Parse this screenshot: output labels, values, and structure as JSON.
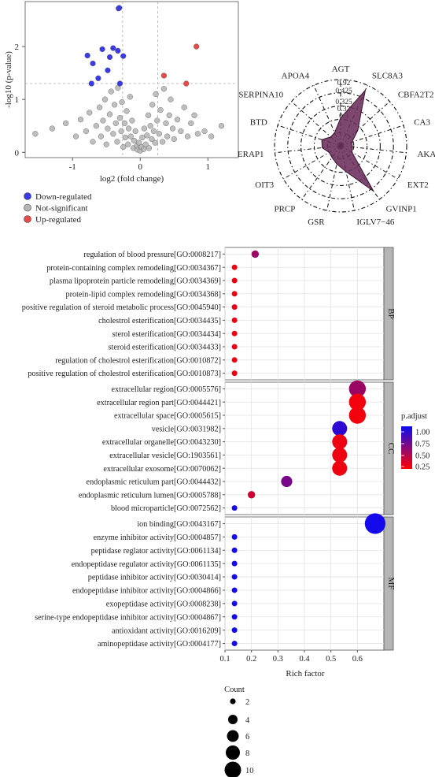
{
  "chart_data": [
    {
      "type": "scatter",
      "xlabel": "log2 (fold change)",
      "ylabel": "-log10 (p-value)",
      "xlim": [
        -1.7,
        1.45
      ],
      "ylim": [
        -0.1,
        2.85
      ],
      "x_ticks": [
        "-1",
        "0",
        "1"
      ],
      "y_ticks": [
        "0",
        "1",
        "2"
      ],
      "threshold_lines": {
        "y": 1.3,
        "x": [
          -0.26,
          0.26
        ]
      },
      "legend": {
        "placement": "bottom-left",
        "items": [
          {
            "label": "Down-regulated",
            "color": "#3a3ae6"
          },
          {
            "label": "Not-significant",
            "color": "#b4b4b4"
          },
          {
            "label": "Up-regulated",
            "color": "#e84a4a"
          }
        ]
      },
      "series": [
        {
          "name": "Down-regulated",
          "color": "#3a3ae6",
          "points": [
            [
              -0.32,
              2.72
            ],
            [
              -0.31,
              2.73
            ],
            [
              -0.78,
              1.83
            ],
            [
              -0.56,
              1.95
            ],
            [
              -0.4,
              1.97
            ],
            [
              -0.33,
              1.92
            ],
            [
              -0.45,
              1.8
            ],
            [
              -0.7,
              1.68
            ],
            [
              -0.25,
              1.82
            ],
            [
              -0.48,
              1.55
            ],
            [
              -0.62,
              1.4
            ],
            [
              -0.72,
              1.3
            ],
            [
              -0.3,
              1.3
            ]
          ]
        },
        {
          "name": "Up-regulated",
          "color": "#e84a4a",
          "points": [
            [
              0.83,
              2.0
            ],
            [
              0.35,
              1.45
            ],
            [
              0.68,
              1.3
            ]
          ]
        },
        {
          "name": "Not-significant",
          "color": "#b4b4b4",
          "points": [
            [
              -1.55,
              0.35
            ],
            [
              -1.3,
              0.45
            ],
            [
              -1.1,
              0.55
            ],
            [
              -0.95,
              0.3
            ],
            [
              -0.88,
              0.62
            ],
            [
              -0.8,
              0.4
            ],
            [
              -0.75,
              0.75
            ],
            [
              -0.7,
              0.2
            ],
            [
              -0.65,
              0.5
            ],
            [
              -0.6,
              0.85
            ],
            [
              -0.58,
              0.3
            ],
            [
              -0.55,
              0.6
            ],
            [
              -0.52,
              1.0
            ],
            [
              -0.5,
              0.15
            ],
            [
              -0.48,
              0.45
            ],
            [
              -0.45,
              0.72
            ],
            [
              -0.43,
              1.15
            ],
            [
              -0.4,
              0.35
            ],
            [
              -0.38,
              0.9
            ],
            [
              -0.36,
              0.55
            ],
            [
              -0.34,
              0.2
            ],
            [
              -0.33,
              1.22
            ],
            [
              -0.3,
              0.65
            ],
            [
              -0.28,
              0.4
            ],
            [
              -0.27,
              0.95
            ],
            [
              -0.25,
              0.1
            ],
            [
              -0.23,
              0.55
            ],
            [
              -0.22,
              0.28
            ],
            [
              -0.2,
              0.78
            ],
            [
              -0.18,
              0.15
            ],
            [
              -0.17,
              0.45
            ],
            [
              -0.15,
              1.05
            ],
            [
              -0.14,
              0.3
            ],
            [
              -0.12,
              0.6
            ],
            [
              -0.1,
              0.08
            ],
            [
              -0.09,
              0.22
            ],
            [
              -0.07,
              0.4
            ],
            [
              -0.05,
              0.12
            ],
            [
              -0.04,
              0.05
            ],
            [
              -0.02,
              0.18
            ],
            [
              0.0,
              0.03
            ],
            [
              0.02,
              0.1
            ],
            [
              0.03,
              0.28
            ],
            [
              0.05,
              0.06
            ],
            [
              0.06,
              0.45
            ],
            [
              0.08,
              0.15
            ],
            [
              0.1,
              0.32
            ],
            [
              0.12,
              0.7
            ],
            [
              0.13,
              0.08
            ],
            [
              0.15,
              0.5
            ],
            [
              0.17,
              0.25
            ],
            [
              0.18,
              0.9
            ],
            [
              0.2,
              0.4
            ],
            [
              0.22,
              0.18
            ],
            [
              0.23,
              1.1
            ],
            [
              0.25,
              0.6
            ],
            [
              0.28,
              0.35
            ],
            [
              0.3,
              0.8
            ],
            [
              0.33,
              0.2
            ],
            [
              0.35,
              1.2
            ],
            [
              0.38,
              0.55
            ],
            [
              0.4,
              0.3
            ],
            [
              0.43,
              0.7
            ],
            [
              0.45,
              1.0
            ],
            [
              0.48,
              0.45
            ],
            [
              0.5,
              0.25
            ],
            [
              0.55,
              0.62
            ],
            [
              0.6,
              0.4
            ],
            [
              0.65,
              0.85
            ],
            [
              0.7,
              0.3
            ],
            [
              0.75,
              0.55
            ],
            [
              0.8,
              0.7
            ],
            [
              0.85,
              0.35
            ],
            [
              0.95,
              0.4
            ],
            [
              1.05,
              0.3
            ],
            [
              1.2,
              0.5
            ]
          ]
        }
      ]
    },
    {
      "type": "radar",
      "axes": [
        "AGT",
        "SLC8A3",
        "CBFA2T2",
        "CA3",
        "AKAP12",
        "EXT2",
        "GVINP1",
        "IGLV7−46",
        "GSR",
        "PRCP",
        "OIT3",
        "ERAP1",
        "BTD",
        "SERPINA10",
        "APOA4"
      ],
      "ring_labels": [
        "0.3",
        "0.32",
        "0.325",
        "0.425",
        "0.92"
      ],
      "values": [
        0.42,
        0.92,
        0.35,
        0.18,
        0.18,
        0.2,
        0.85,
        0.4,
        0.28,
        0.22,
        0.2,
        0.28,
        0.3,
        0.2,
        0.22
      ],
      "fill_color": "#6b2d5c"
    },
    {
      "type": "dot",
      "xlabel": "Rich factor",
      "xlim": [
        0.1,
        0.7
      ],
      "x_ticks": [
        "0.1",
        "0.2",
        "0.3",
        "0.4",
        "0.5",
        "0.6"
      ],
      "facets": [
        {
          "name": "BP",
          "rows": [
            {
              "term": "regulation of blood pressure[GO:0008217]",
              "x": 0.214,
              "count": 3,
              "padj": 0.45
            },
            {
              "term": "protein-containing complex remodeling[GO:0034367]",
              "x": 0.136,
              "count": 2,
              "padj": 0.12
            },
            {
              "term": "plasma lipoprotein particle remodeling[GO:0034369]",
              "x": 0.136,
              "count": 2,
              "padj": 0.12
            },
            {
              "term": "protein-lipid complex remodeling[GO:0034368]",
              "x": 0.136,
              "count": 2,
              "padj": 0.12
            },
            {
              "term": "positive regulation of steroid metabolic process[GO:0045940]",
              "x": 0.136,
              "count": 2,
              "padj": 0.14
            },
            {
              "term": "cholestrol esterification[GO:0034435]",
              "x": 0.136,
              "count": 2,
              "padj": 0.12
            },
            {
              "term": "sterol esterification[GO:0034434]",
              "x": 0.136,
              "count": 2,
              "padj": 0.12
            },
            {
              "term": "steroid esterification[GO:0034433]",
              "x": 0.136,
              "count": 2,
              "padj": 0.12
            },
            {
              "term": "regulation of cholestrol esterification[GO:0010872]",
              "x": 0.136,
              "count": 2,
              "padj": 0.12
            },
            {
              "term": "positive regulation of cholestrol esterification[GO:0010873]",
              "x": 0.136,
              "count": 2,
              "padj": 0.12
            }
          ]
        },
        {
          "name": "CC",
          "rows": [
            {
              "term": "extracellular region[GO:0005576]",
              "x": 0.6,
              "count": 8,
              "padj": 0.45
            },
            {
              "term": "extracellular region part[GO:0044421]",
              "x": 0.6,
              "count": 8,
              "padj": 0.1
            },
            {
              "term": "extracellular space[GO:0005615]",
              "x": 0.6,
              "count": 8,
              "padj": 0.1
            },
            {
              "term": "vesicle[GO:0031982]",
              "x": 0.533,
              "count": 7,
              "padj": 0.9
            },
            {
              "term": "extracellular organelle[GO:0043230]",
              "x": 0.533,
              "count": 7,
              "padj": 0.12
            },
            {
              "term": "extracellular vesicle[GO:1903561]",
              "x": 0.533,
              "count": 7,
              "padj": 0.12
            },
            {
              "term": "extracellular exosome[GO:0070062]",
              "x": 0.533,
              "count": 7,
              "padj": 0.12
            },
            {
              "term": "endoplasmic reticulum part[GO:0044432]",
              "x": 0.333,
              "count": 5,
              "padj": 0.6
            },
            {
              "term": "endoplasmic reticulum lumen[GO:0005788]",
              "x": 0.2,
              "count": 3,
              "padj": 0.25
            },
            {
              "term": "blood microparticle[GO:0072562]",
              "x": 0.136,
              "count": 2,
              "padj": 1.0
            }
          ]
        },
        {
          "name": "MF",
          "rows": [
            {
              "term": "ion binding[GO:0043167]",
              "x": 0.667,
              "count": 10,
              "padj": 1.0
            },
            {
              "term": "enzyme inhibitor activity[GO:0004857]",
              "x": 0.136,
              "count": 2,
              "padj": 1.0
            },
            {
              "term": "peptidase reglator activity[GO:0061134]",
              "x": 0.136,
              "count": 2,
              "padj": 1.0
            },
            {
              "term": "endopeptidase regulator activity[GO:0061135]",
              "x": 0.136,
              "count": 2,
              "padj": 1.0
            },
            {
              "term": "peptidase inhibitor activity[GO:0030414]",
              "x": 0.136,
              "count": 2,
              "padj": 1.0
            },
            {
              "term": "endopeptidase inhibitor activity[GO:0004866]",
              "x": 0.136,
              "count": 2,
              "padj": 1.0
            },
            {
              "term": "exopeptidase activity[GO:0008238]",
              "x": 0.136,
              "count": 2,
              "padj": 1.0
            },
            {
              "term": "serine-type endopeptidase inhibitor activity[GO:0004867]",
              "x": 0.136,
              "count": 2,
              "padj": 1.0
            },
            {
              "term": "antioxidant activity[GO:0016209]",
              "x": 0.136,
              "count": 2,
              "padj": 1.0
            },
            {
              "term": "aminopeptidase activity[GO:0004177]",
              "x": 0.136,
              "count": 2,
              "padj": 1.0
            }
          ]
        }
      ],
      "color_legend": {
        "title": "p.adjust",
        "ticks": [
          "1.00",
          "0.75",
          "0.50",
          "0.25"
        ],
        "range": [
          0.05,
          1.0
        ],
        "low_color": "#ff0000",
        "high_color": "#0000ff"
      },
      "size_legend": {
        "title": "Count",
        "ticks": [
          "2",
          "4",
          "6",
          "8",
          "10"
        ]
      }
    }
  ]
}
